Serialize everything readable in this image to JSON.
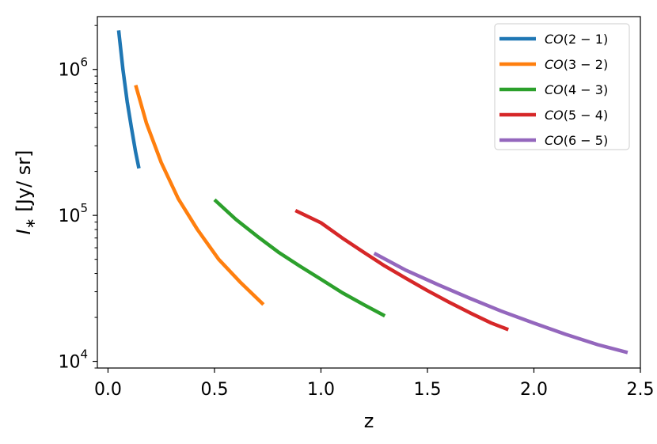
{
  "chart_data": {
    "type": "line",
    "xlabel": "z",
    "ylabel_main": "I",
    "ylabel_sub": "∗",
    "ylabel_unit": " [Jy/ sr]",
    "xlim": [
      -0.05,
      2.5
    ],
    "ylim": [
      9000,
      2300000
    ],
    "yscale": "log",
    "grid": false,
    "legend_position": "top-right",
    "xticks": [
      {
        "value": 0.0,
        "label": "0.0"
      },
      {
        "value": 0.5,
        "label": "0.5"
      },
      {
        "value": 1.0,
        "label": "1.0"
      },
      {
        "value": 1.5,
        "label": "1.5"
      },
      {
        "value": 2.0,
        "label": "2.0"
      },
      {
        "value": 2.5,
        "label": "2.5"
      }
    ],
    "yticks": [
      {
        "value": 10000,
        "base": "10",
        "exp": "4"
      },
      {
        "value": 100000,
        "base": "10",
        "exp": "5"
      },
      {
        "value": 1000000,
        "base": "10",
        "exp": "6"
      }
    ],
    "series": [
      {
        "name_main": "CO",
        "name_args": "(2 − 1)",
        "color": "#1f77b4",
        "x": [
          0.05,
          0.07,
          0.09,
          0.11,
          0.13,
          0.145
        ],
        "y": [
          1850000,
          1000000,
          600000,
          400000,
          270000,
          210000
        ]
      },
      {
        "name_main": "CO",
        "name_args": "(3 − 2)",
        "color": "#ff7f0e",
        "x": [
          0.13,
          0.18,
          0.25,
          0.33,
          0.42,
          0.52,
          0.62,
          0.73
        ],
        "y": [
          780000,
          430000,
          230000,
          130000,
          80000,
          50000,
          35000,
          24500
        ]
      },
      {
        "name_main": "CO",
        "name_args": "(4 − 3)",
        "color": "#2ca02c",
        "x": [
          0.5,
          0.6,
          0.7,
          0.8,
          0.9,
          1.0,
          1.1,
          1.2,
          1.3
        ],
        "y": [
          128000,
          94000,
          72000,
          56000,
          45000,
          36500,
          29500,
          24500,
          20500
        ]
      },
      {
        "name_main": "CO",
        "name_args": "(5 − 4)",
        "color": "#d62728",
        "x": [
          0.88,
          1.0,
          1.1,
          1.2,
          1.3,
          1.4,
          1.5,
          1.6,
          1.7,
          1.8,
          1.88
        ],
        "y": [
          108000,
          89000,
          70000,
          56000,
          45000,
          37000,
          30500,
          25500,
          21500,
          18300,
          16500
        ]
      },
      {
        "name_main": "CO",
        "name_args": "(6 − 5)",
        "color": "#9467bd",
        "x": [
          1.25,
          1.4,
          1.55,
          1.7,
          1.85,
          2.0,
          2.15,
          2.3,
          2.44
        ],
        "y": [
          55000,
          42000,
          33500,
          27000,
          22000,
          18300,
          15300,
          13000,
          11500
        ]
      }
    ]
  }
}
